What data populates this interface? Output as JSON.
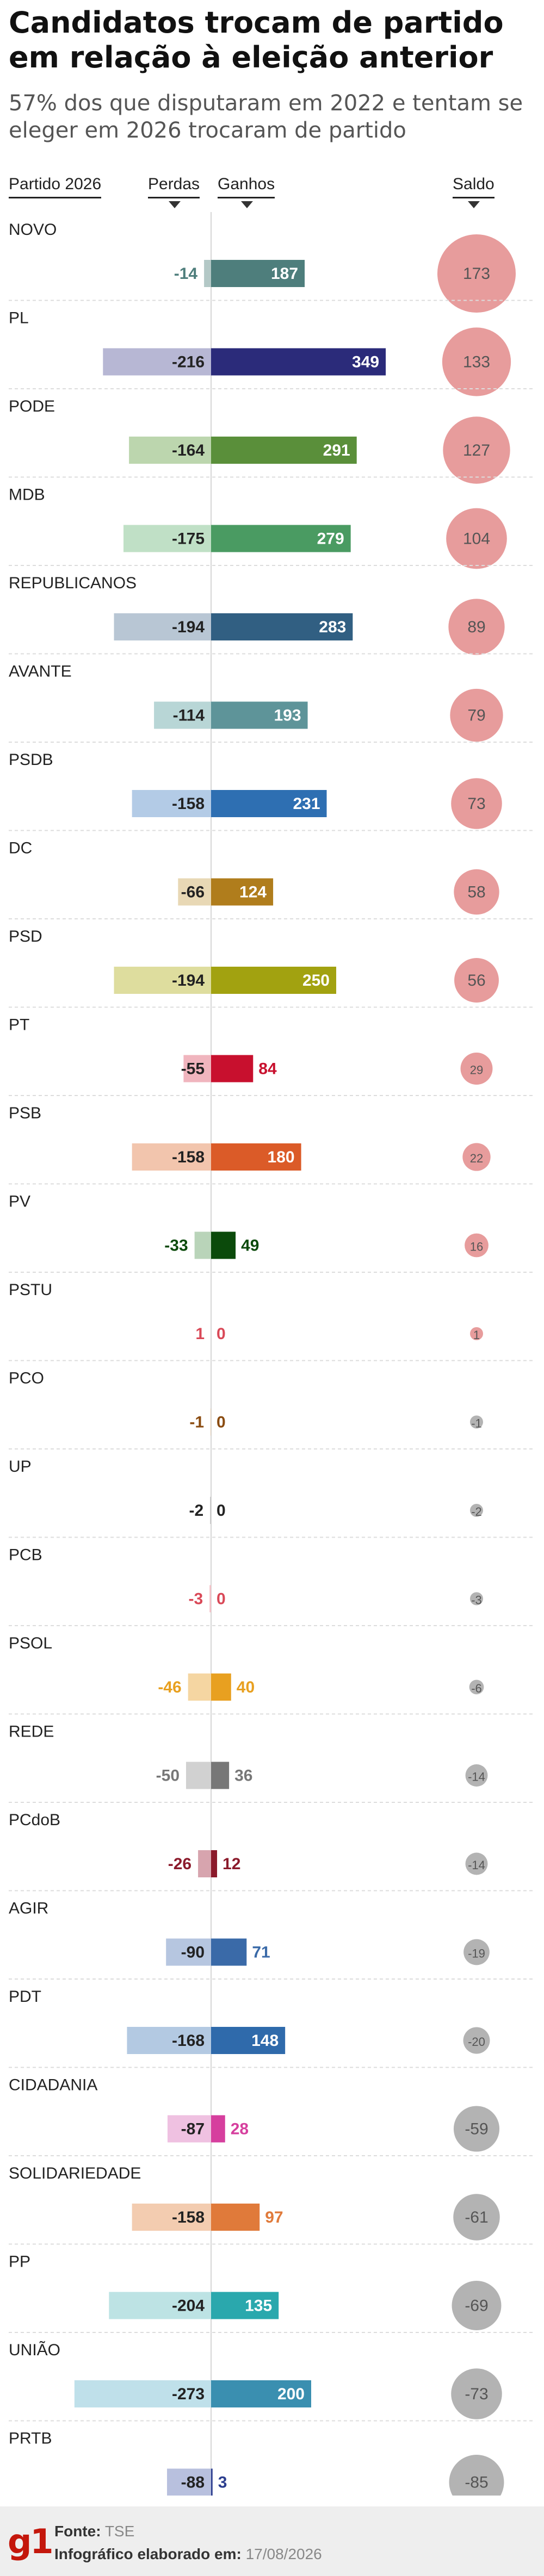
{
  "title": "Candidatos trocam de partido em relação à eleição anterior",
  "subtitle": "57% dos que disputaram em 2022 e tentam se eleger em 2026 trocaram de partido",
  "headers": {
    "party": "Partido 2026",
    "losses": "Perdas",
    "gains": "Ganhos",
    "balance": "Saldo"
  },
  "footer": {
    "logo": "g1",
    "source_label": "Fonte:",
    "source_value": "TSE",
    "made_label": "Infográfico elaborado em:",
    "made_value": "17/08/2026"
  },
  "chart_data": {
    "type": "bar",
    "categories": [
      "NOVO",
      "PL",
      "PODE",
      "MDB",
      "REPUBLICANOS",
      "AVANTE",
      "PSDB",
      "DC",
      "PSD",
      "PT",
      "PSB",
      "PV",
      "PSTU",
      "PCO",
      "UP",
      "PCB",
      "PSOL",
      "REDE",
      "PCdoB",
      "AGIR",
      "PDT",
      "CIDADANIA",
      "SOLIDARIEDADE",
      "PP",
      "UNIÃO",
      "PRTB"
    ],
    "series": [
      {
        "name": "Perdas",
        "values": [
          -14,
          -216,
          -164,
          -175,
          -194,
          -114,
          -158,
          -66,
          -194,
          -55,
          -158,
          -33,
          1,
          -1,
          -2,
          -3,
          -46,
          -50,
          -26,
          -90,
          -168,
          -87,
          -158,
          -204,
          -273,
          -88
        ]
      },
      {
        "name": "Ganhos",
        "values": [
          187,
          349,
          291,
          279,
          283,
          193,
          231,
          124,
          250,
          84,
          180,
          49,
          0,
          0,
          0,
          0,
          40,
          36,
          12,
          71,
          148,
          28,
          97,
          135,
          200,
          3
        ]
      },
      {
        "name": "Saldo",
        "values": [
          173,
          133,
          127,
          104,
          89,
          79,
          73,
          58,
          56,
          29,
          22,
          16,
          1,
          -1,
          -2,
          -3,
          -6,
          -14,
          -14,
          -19,
          -20,
          -59,
          -61,
          -69,
          -73,
          -85
        ]
      }
    ],
    "colors": {
      "gains": [
        "#4e7e7c",
        "#2b2b7a",
        "#5a8f3a",
        "#4a9b62",
        "#315f82",
        "#5e9499",
        "#2e6fb2",
        "#b07d1c",
        "#a2a210",
        "#c8102e",
        "#db5b28",
        "#0b4a0b",
        "#d94857",
        "#8a4b10",
        "#222222",
        "#d94857",
        "#e8a020",
        "#777777",
        "#8b1a2b",
        "#3a6aa8",
        "#2f6aab",
        "#d63f9e",
        "#e07a3a",
        "#2aa8ad",
        "#3a8fb0",
        "#2d3f8f"
      ],
      "losses": [
        "#b3c8c6",
        "#b7b7d4",
        "#bcd6ae",
        "#c0e0c6",
        "#b8c6d4",
        "#b8d6d6",
        "#b3cbe6",
        "#e8d8b5",
        "#dedd9e",
        "#f0b5be",
        "#f2c5ad",
        "#b9d4b9",
        "#f3c1c7",
        "#dcc4aa",
        "#c6c6c6",
        "#f3c1c7",
        "#f5d6a2",
        "#d1d1d1",
        "#d7a4ae",
        "#b6c6e0",
        "#b3c9e2",
        "#efc1e1",
        "#f3ccb0",
        "#bde3e4",
        "#bfe0ea",
        "#b8c0de"
      ],
      "balance_positive": "#e79c9c",
      "balance_negative": "#b3b3b3"
    }
  }
}
